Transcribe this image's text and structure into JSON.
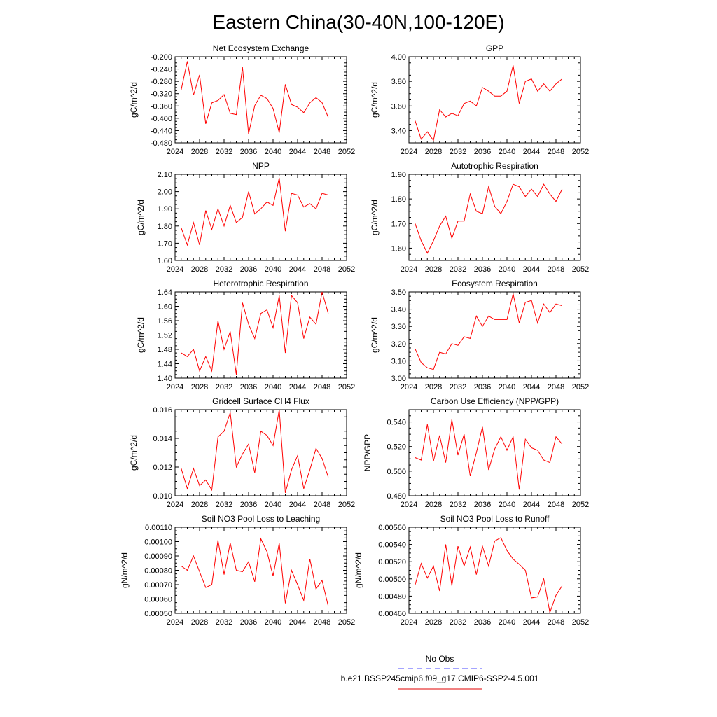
{
  "figure": {
    "title": "Eastern China(30-40N,100-120E)",
    "legend": {
      "items": [
        {
          "label": "No Obs",
          "color": "#4a4aff",
          "dash": true
        },
        {
          "label": "b.e21.BSSP245cmip6.f09_g17.CMIP6-SSP2-4.5.001",
          "color": "#e00000",
          "dash": false
        }
      ]
    },
    "line_color": "#ff0000"
  },
  "chart_data": [
    {
      "type": "line",
      "title": "Net Ecosystem Exchange",
      "ylabel": "gC/m^2/d",
      "xlim": [
        2024,
        2052
      ],
      "xticks": [
        2024,
        2028,
        2032,
        2036,
        2040,
        2044,
        2048,
        2052
      ],
      "ylim": [
        -0.48,
        -0.2
      ],
      "yticks": [
        -0.48,
        -0.44,
        -0.4,
        -0.36,
        -0.32,
        -0.28,
        -0.24,
        -0.2
      ],
      "decimals": 3,
      "series": [
        {
          "x": [
            2025,
            2026,
            2027,
            2028,
            2029,
            2030,
            2031,
            2032,
            2033,
            2034,
            2035,
            2036,
            2037,
            2038,
            2039,
            2040,
            2041,
            2042,
            2043,
            2044,
            2045,
            2046,
            2047,
            2048,
            2049
          ],
          "values": [
            -0.307,
            -0.215,
            -0.325,
            -0.259,
            -0.418,
            -0.35,
            -0.342,
            -0.323,
            -0.384,
            -0.388,
            -0.234,
            -0.451,
            -0.359,
            -0.325,
            -0.336,
            -0.368,
            -0.447,
            -0.29,
            -0.355,
            -0.364,
            -0.382,
            -0.35,
            -0.333,
            -0.349,
            -0.397
          ]
        }
      ]
    },
    {
      "type": "line",
      "title": "GPP",
      "ylabel": "gC/m^2/d",
      "xlim": [
        2024,
        2052
      ],
      "xticks": [
        2024,
        2028,
        2032,
        2036,
        2040,
        2044,
        2048,
        2052
      ],
      "ylim": [
        3.3,
        4.0
      ],
      "yticks": [
        3.4,
        3.6,
        3.8,
        4.0
      ],
      "decimals": 2,
      "series": [
        {
          "x": [
            2025,
            2026,
            2027,
            2028,
            2029,
            2030,
            2031,
            2032,
            2033,
            2034,
            2035,
            2036,
            2037,
            2038,
            2039,
            2040,
            2041,
            2042,
            2043,
            2044,
            2045,
            2046,
            2047,
            2048,
            2049
          ],
          "values": [
            3.48,
            3.33,
            3.39,
            3.32,
            3.57,
            3.51,
            3.54,
            3.52,
            3.62,
            3.64,
            3.6,
            3.75,
            3.72,
            3.68,
            3.68,
            3.72,
            3.93,
            3.62,
            3.8,
            3.82,
            3.72,
            3.78,
            3.72,
            3.78,
            3.82
          ]
        }
      ]
    },
    {
      "type": "line",
      "title": "NPP",
      "ylabel": "gC/m^2/d",
      "xlim": [
        2024,
        2052
      ],
      "xticks": [
        2024,
        2028,
        2032,
        2036,
        2040,
        2044,
        2048,
        2052
      ],
      "ylim": [
        1.6,
        2.1
      ],
      "yticks": [
        1.6,
        1.7,
        1.8,
        1.9,
        2.0,
        2.1
      ],
      "decimals": 2,
      "series": [
        {
          "x": [
            2025,
            2026,
            2027,
            2028,
            2029,
            2030,
            2031,
            2032,
            2033,
            2034,
            2035,
            2036,
            2037,
            2038,
            2039,
            2040,
            2041,
            2042,
            2043,
            2044,
            2045,
            2046,
            2047,
            2048,
            2049
          ],
          "values": [
            1.79,
            1.69,
            1.82,
            1.69,
            1.89,
            1.78,
            1.9,
            1.8,
            1.92,
            1.82,
            1.85,
            2.0,
            1.87,
            1.9,
            1.94,
            1.92,
            2.08,
            1.77,
            1.99,
            1.98,
            1.91,
            1.93,
            1.9,
            1.99,
            1.98
          ]
        }
      ]
    },
    {
      "type": "line",
      "title": "Autotrophic Respiration",
      "ylabel": "gC/m^2/d",
      "xlim": [
        2024,
        2052
      ],
      "xticks": [
        2024,
        2028,
        2032,
        2036,
        2040,
        2044,
        2048,
        2052
      ],
      "ylim": [
        1.55,
        1.9
      ],
      "yticks": [
        1.6,
        1.7,
        1.8,
        1.9
      ],
      "decimals": 2,
      "series": [
        {
          "x": [
            2025,
            2026,
            2027,
            2028,
            2029,
            2030,
            2031,
            2032,
            2033,
            2034,
            2035,
            2036,
            2037,
            2038,
            2039,
            2040,
            2041,
            2042,
            2043,
            2044,
            2045,
            2046,
            2047,
            2048,
            2049
          ],
          "values": [
            1.7,
            1.63,
            1.58,
            1.63,
            1.69,
            1.73,
            1.64,
            1.71,
            1.71,
            1.82,
            1.75,
            1.74,
            1.85,
            1.77,
            1.74,
            1.79,
            1.86,
            1.85,
            1.81,
            1.84,
            1.81,
            1.86,
            1.82,
            1.79,
            1.84
          ]
        }
      ]
    },
    {
      "type": "line",
      "title": "Heterotrophic Respiration",
      "ylabel": "gC/m^2/d",
      "xlim": [
        2024,
        2052
      ],
      "xticks": [
        2024,
        2028,
        2032,
        2036,
        2040,
        2044,
        2048,
        2052
      ],
      "ylim": [
        1.4,
        1.64
      ],
      "yticks": [
        1.4,
        1.44,
        1.48,
        1.52,
        1.56,
        1.6,
        1.64
      ],
      "decimals": 2,
      "series": [
        {
          "x": [
            2025,
            2026,
            2027,
            2028,
            2029,
            2030,
            2031,
            2032,
            2033,
            2034,
            2035,
            2036,
            2037,
            2038,
            2039,
            2040,
            2041,
            2042,
            2043,
            2044,
            2045,
            2046,
            2047,
            2048,
            2049
          ],
          "values": [
            1.47,
            1.46,
            1.48,
            1.42,
            1.46,
            1.42,
            1.56,
            1.48,
            1.53,
            1.41,
            1.61,
            1.55,
            1.51,
            1.58,
            1.59,
            1.54,
            1.63,
            1.47,
            1.63,
            1.61,
            1.51,
            1.57,
            1.55,
            1.64,
            1.58
          ]
        }
      ]
    },
    {
      "type": "line",
      "title": "Ecosystem Respiration",
      "ylabel": "gC/m^2/d",
      "xlim": [
        2024,
        2052
      ],
      "xticks": [
        2024,
        2028,
        2032,
        2036,
        2040,
        2044,
        2048,
        2052
      ],
      "ylim": [
        3.0,
        3.5
      ],
      "yticks": [
        3.0,
        3.1,
        3.2,
        3.3,
        3.4,
        3.5
      ],
      "decimals": 2,
      "series": [
        {
          "x": [
            2025,
            2026,
            2027,
            2028,
            2029,
            2030,
            2031,
            2032,
            2033,
            2034,
            2035,
            2036,
            2037,
            2038,
            2039,
            2040,
            2041,
            2042,
            2043,
            2044,
            2045,
            2046,
            2047,
            2048,
            2049
          ],
          "values": [
            3.17,
            3.09,
            3.06,
            3.05,
            3.15,
            3.14,
            3.2,
            3.19,
            3.24,
            3.23,
            3.36,
            3.3,
            3.36,
            3.34,
            3.34,
            3.34,
            3.49,
            3.32,
            3.44,
            3.45,
            3.32,
            3.43,
            3.38,
            3.43,
            3.42
          ]
        }
      ]
    },
    {
      "type": "line",
      "title": "Gridcell Surface CH4 Flux",
      "ylabel": "gC/m^2/d",
      "xlim": [
        2024,
        2052
      ],
      "xticks": [
        2024,
        2028,
        2032,
        2036,
        2040,
        2044,
        2048,
        2052
      ],
      "ylim": [
        0.01,
        0.016
      ],
      "yticks": [
        0.01,
        0.012,
        0.014,
        0.016
      ],
      "decimals": 3,
      "series": [
        {
          "x": [
            2025,
            2026,
            2027,
            2028,
            2029,
            2030,
            2031,
            2032,
            2033,
            2034,
            2035,
            2036,
            2037,
            2038,
            2039,
            2040,
            2041,
            2042,
            2043,
            2044,
            2045,
            2046,
            2047,
            2048,
            2049
          ],
          "values": [
            0.0119,
            0.0105,
            0.0119,
            0.0107,
            0.0111,
            0.0104,
            0.0141,
            0.0145,
            0.0158,
            0.012,
            0.0129,
            0.0136,
            0.0116,
            0.0145,
            0.0142,
            0.0135,
            0.016,
            0.0102,
            0.0118,
            0.0128,
            0.0105,
            0.0118,
            0.0133,
            0.0126,
            0.0113
          ]
        }
      ]
    },
    {
      "type": "line",
      "title": "Carbon Use Efficiency (NPP/GPP)",
      "ylabel": "NPP/GPP",
      "xlim": [
        2024,
        2052
      ],
      "xticks": [
        2024,
        2028,
        2032,
        2036,
        2040,
        2044,
        2048,
        2052
      ],
      "ylim": [
        0.48,
        0.55
      ],
      "yticks": [
        0.48,
        0.5,
        0.52,
        0.54
      ],
      "decimals": 3,
      "series": [
        {
          "x": [
            2025,
            2026,
            2027,
            2028,
            2029,
            2030,
            2031,
            2032,
            2033,
            2034,
            2035,
            2036,
            2037,
            2038,
            2039,
            2040,
            2041,
            2042,
            2043,
            2044,
            2045,
            2046,
            2047,
            2048,
            2049
          ],
          "values": [
            0.511,
            0.509,
            0.538,
            0.508,
            0.529,
            0.507,
            0.542,
            0.513,
            0.53,
            0.496,
            0.515,
            0.536,
            0.501,
            0.518,
            0.528,
            0.517,
            0.528,
            0.485,
            0.526,
            0.519,
            0.517,
            0.509,
            0.507,
            0.528,
            0.522
          ]
        }
      ]
    },
    {
      "type": "line",
      "title": "Soil NO3 Pool Loss to Leaching",
      "ylabel": "gN/m^2/d",
      "xlim": [
        2024,
        2052
      ],
      "xticks": [
        2024,
        2028,
        2032,
        2036,
        2040,
        2044,
        2048,
        2052
      ],
      "ylim": [
        0.0005,
        0.0011
      ],
      "yticks": [
        0.0005,
        0.0006,
        0.0007,
        0.0008,
        0.0009,
        0.001,
        0.0011
      ],
      "decimals": 5,
      "series": [
        {
          "x": [
            2025,
            2026,
            2027,
            2028,
            2029,
            2030,
            2031,
            2032,
            2033,
            2034,
            2035,
            2036,
            2037,
            2038,
            2039,
            2040,
            2041,
            2042,
            2043,
            2044,
            2045,
            2046,
            2047,
            2048,
            2049
          ],
          "values": [
            0.00083,
            0.0008,
            0.0009,
            0.00079,
            0.00068,
            0.0007,
            0.00101,
            0.00077,
            0.00099,
            0.0008,
            0.00079,
            0.00086,
            0.00072,
            0.00102,
            0.00093,
            0.00076,
            0.00099,
            0.00057,
            0.0008,
            0.0007,
            0.00059,
            0.00088,
            0.00067,
            0.00073,
            0.00055
          ]
        }
      ]
    },
    {
      "type": "line",
      "title": "Soil NO3 Pool Loss to Runoff",
      "ylabel": "gN/m^2/d",
      "xlim": [
        2024,
        2052
      ],
      "xticks": [
        2024,
        2028,
        2032,
        2036,
        2040,
        2044,
        2048,
        2052
      ],
      "ylim": [
        0.0046,
        0.0056
      ],
      "yticks": [
        0.0046,
        0.0048,
        0.005,
        0.0052,
        0.0054,
        0.0056
      ],
      "decimals": 5,
      "series": [
        {
          "x": [
            2025,
            2026,
            2027,
            2028,
            2029,
            2030,
            2031,
            2032,
            2033,
            2034,
            2035,
            2036,
            2037,
            2038,
            2039,
            2040,
            2041,
            2042,
            2043,
            2044,
            2045,
            2046,
            2047,
            2048,
            2049
          ],
          "values": [
            0.00493,
            0.00518,
            0.00501,
            0.00515,
            0.00486,
            0.0054,
            0.00492,
            0.00538,
            0.00515,
            0.00537,
            0.00505,
            0.00538,
            0.00515,
            0.00544,
            0.00548,
            0.00533,
            0.00523,
            0.00517,
            0.0051,
            0.00478,
            0.00479,
            0.005,
            0.00461,
            0.00481,
            0.00492
          ]
        }
      ]
    }
  ]
}
